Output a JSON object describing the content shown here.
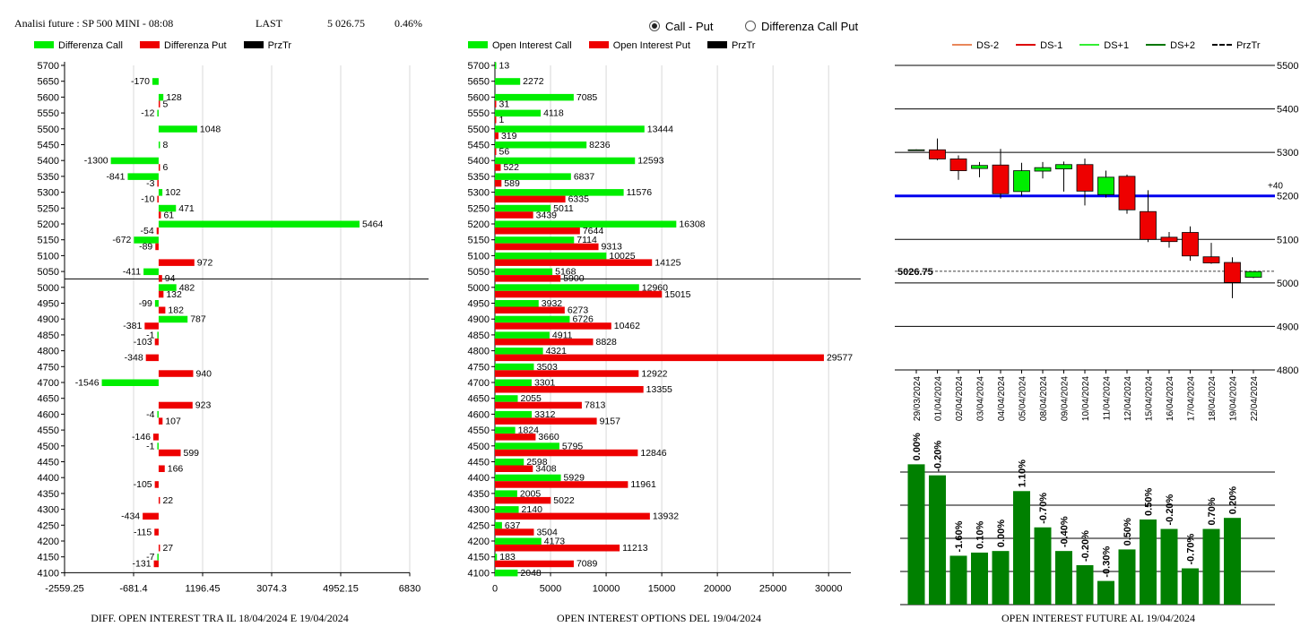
{
  "header": {
    "title": "Analisi future : SP 500 MINI - 08:08",
    "last_label": "LAST",
    "last_value": "5 026.75",
    "change": "0.46%"
  },
  "radio": {
    "option1": "Call - Put",
    "option2": "Differenza Call Put",
    "selected": "Call - Put"
  },
  "colors": {
    "green": "#00ee00",
    "red": "#ee0000",
    "dark_green": "#008000",
    "blue": "#0000ee",
    "black": "#000000"
  },
  "panel1": {
    "legend": [
      "Differenza Call",
      "Differenza Put",
      "PrzTr"
    ],
    "caption": "DIFF. OPEN INTEREST TRA IL 18/04/2024 E 19/04/2024"
  },
  "panel2": {
    "legend": [
      "Open Interest Call",
      "Open Interest Put",
      "PrzTr"
    ],
    "caption": "OPEN INTEREST OPTIONS DEL 19/04/2024"
  },
  "panel3": {
    "legend": [
      "DS-2",
      "DS-1",
      "DS+1",
      "DS+2",
      "PrzTr"
    ],
    "legend_colors": [
      "#e8875a",
      "#dd0000",
      "#33ee33",
      "#007700",
      "#000000"
    ],
    "caption": "OPEN INTEREST FUTURE AL 19/04/2024"
  },
  "chart_data": [
    {
      "type": "bar",
      "orientation": "horizontal",
      "categories": [
        "5700",
        "5650",
        "5600",
        "5550",
        "5500",
        "5450",
        "5400",
        "5350",
        "5300",
        "5250",
        "5200",
        "5150",
        "5100",
        "5050",
        "5000",
        "4950",
        "4900",
        "4850",
        "4800",
        "4750",
        "4700",
        "4650",
        "4600",
        "4550",
        "4500",
        "4450",
        "4400",
        "4350",
        "4300",
        "4250",
        "4200",
        "4150",
        "4100"
      ],
      "series": [
        {
          "name": "Differenza Call",
          "values": [
            null,
            -170,
            128,
            -12,
            1048,
            8,
            -1300,
            -841,
            102,
            471,
            5464,
            -672,
            null,
            -411,
            482,
            -99,
            787,
            -1,
            null,
            null,
            -1546,
            null,
            -4,
            null,
            -1,
            null,
            null,
            null,
            null,
            null,
            null,
            -7,
            null
          ]
        },
        {
          "name": "Differenza Put",
          "values": [
            null,
            null,
            5,
            null,
            null,
            null,
            6,
            -3,
            -10,
            61,
            -54,
            -89,
            972,
            94,
            132,
            182,
            -381,
            -103,
            -348,
            940,
            null,
            923,
            107,
            -146,
            599,
            166,
            -105,
            22,
            -434,
            -115,
            27,
            -131,
            null
          ]
        }
      ],
      "price_level": 5026.75,
      "xticks": [
        "-2559.25",
        "-681.4",
        "1196.45",
        "3074.3",
        "4952.15",
        "6830"
      ],
      "xlim": [
        -2559.25,
        6830
      ]
    },
    {
      "type": "bar",
      "orientation": "horizontal",
      "categories": [
        "5700",
        "5650",
        "5600",
        "5550",
        "5500",
        "5450",
        "5400",
        "5350",
        "5300",
        "5250",
        "5200",
        "5150",
        "5100",
        "5050",
        "5000",
        "4950",
        "4900",
        "4850",
        "4800",
        "4750",
        "4700",
        "4650",
        "4600",
        "4550",
        "4500",
        "4450",
        "4400",
        "4350",
        "4300",
        "4250",
        "4200",
        "4150",
        "4100"
      ],
      "series": [
        {
          "name": "Open Interest Call",
          "values": [
            13,
            2272,
            7085,
            4118,
            13444,
            8236,
            12593,
            6837,
            11576,
            5011,
            16308,
            7114,
            10025,
            5168,
            12960,
            3932,
            6726,
            4911,
            4321,
            3503,
            3301,
            2055,
            3312,
            1824,
            5795,
            2598,
            5929,
            2005,
            2140,
            637,
            4173,
            183,
            2048
          ]
        },
        {
          "name": "Open Interest Put",
          "values": [
            null,
            null,
            31,
            1,
            319,
            56,
            522,
            589,
            6335,
            3439,
            7644,
            9313,
            14125,
            5900,
            15015,
            6273,
            10462,
            8828,
            29577,
            12922,
            13355,
            7813,
            9157,
            3660,
            12846,
            3408,
            11961,
            5022,
            13932,
            3504,
            11213,
            7089,
            null
          ]
        }
      ],
      "price_level": 5026.75,
      "xticks": [
        "0",
        "5000",
        "10000",
        "15000",
        "20000",
        "25000",
        "30000"
      ],
      "xlim": [
        0,
        32000
      ]
    },
    {
      "type": "candlestick",
      "dates": [
        "29/03/2024",
        "01/04/2024",
        "02/04/2024",
        "03/04/2024",
        "04/04/2024",
        "05/04/2024",
        "08/04/2024",
        "09/04/2024",
        "10/04/2024",
        "11/04/2024",
        "12/04/2024",
        "15/04/2024",
        "16/04/2024",
        "17/04/2024",
        "18/04/2024",
        "19/04/2024",
        "22/04/2024"
      ],
      "ohlc": [
        [
          5306,
          5307,
          5305,
          5306
        ],
        [
          5306,
          5332,
          5282,
          5285
        ],
        [
          5285,
          5293,
          5237,
          5258
        ],
        [
          5263,
          5278,
          5243,
          5270
        ],
        [
          5271,
          5308,
          5194,
          5205
        ],
        [
          5210,
          5276,
          5200,
          5258
        ],
        [
          5257,
          5278,
          5240,
          5265
        ],
        [
          5262,
          5279,
          5210,
          5272
        ],
        [
          5272,
          5286,
          5178,
          5211
        ],
        [
          5203,
          5258,
          5196,
          5243
        ],
        [
          5245,
          5249,
          5159,
          5168
        ],
        [
          5164,
          5213,
          5094,
          5100
        ],
        [
          5105,
          5117,
          5081,
          5095
        ],
        [
          5116,
          5130,
          5051,
          5062
        ],
        [
          5060,
          5092,
          5044,
          5046
        ],
        [
          5047,
          5059,
          4965,
          5001
        ],
        [
          5013,
          5027,
          5011,
          5026
        ]
      ],
      "ylim": [
        4800,
        5500
      ],
      "yticks": [
        "5500",
        "5400",
        "5300",
        "5200",
        "5100",
        "5000",
        "4900",
        "4800"
      ],
      "blue_line": 5200,
      "blue_line_label": "+40",
      "last_price": 5026.75,
      "last_price_label": "5026.75"
    },
    {
      "type": "bar",
      "categories": [
        "29/03/2024",
        "01/04/2024",
        "02/04/2024",
        "03/04/2024",
        "04/04/2024",
        "05/04/2024",
        "08/04/2024",
        "09/04/2024",
        "10/04/2024",
        "11/04/2024",
        "12/04/2024",
        "15/04/2024",
        "16/04/2024",
        "17/04/2024",
        "18/04/2024",
        "19/04/2024"
      ],
      "relative_heights": [
        0.89,
        0.82,
        0.31,
        0.33,
        0.34,
        0.72,
        0.49,
        0.34,
        0.25,
        0.15,
        0.35,
        0.54,
        0.48,
        0.23,
        0.48,
        0.55
      ],
      "labels": [
        "0.00%",
        "-0.20%",
        "-1.60%",
        "0.10%",
        "0.00%",
        "1.10%",
        "-0.70%",
        "-0.40%",
        "-0.20%",
        "-0.30%",
        "0.50%",
        "0.50%",
        "-0.20%",
        "-0.70%",
        "0.70%",
        "0.20%"
      ]
    }
  ]
}
